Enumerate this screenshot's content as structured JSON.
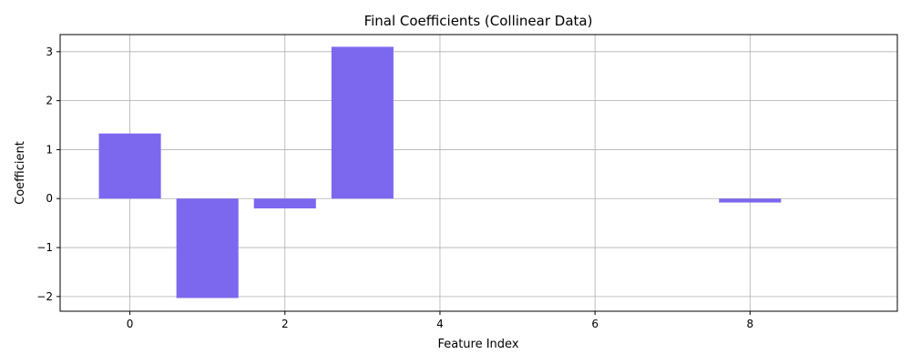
{
  "chart_data": {
    "type": "bar",
    "title": "Final Coefficients (Collinear Data)",
    "xlabel": "Feature Index",
    "ylabel": "Coefficient",
    "x": [
      0,
      1,
      2,
      3,
      4,
      5,
      6,
      7,
      8,
      9
    ],
    "values": [
      1.33,
      -2.03,
      -0.2,
      3.1,
      0,
      0,
      0,
      0,
      -0.08,
      0
    ],
    "xlim": [
      -0.9,
      9.9
    ],
    "ylim": [
      -2.3,
      3.35
    ],
    "xticks": [
      0,
      2,
      4,
      6,
      8
    ],
    "yticks": [
      -2,
      -1,
      0,
      1,
      2,
      3
    ],
    "xtick_labels": [
      "0",
      "2",
      "4",
      "6",
      "8"
    ],
    "ytick_labels": [
      "−2",
      "−1",
      "0",
      "1",
      "2",
      "3"
    ],
    "bar_width": 0.8,
    "grid": true,
    "bar_color": "#7b68ee",
    "grid_color": "#b0b0b0"
  }
}
